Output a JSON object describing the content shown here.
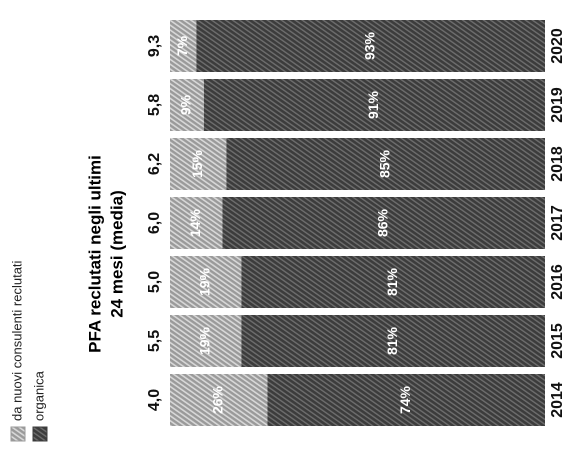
{
  "chart_data": {
    "type": "stacked-bar",
    "title": "PFA reclutati negli ultimi",
    "subtitle": "24 mesi (media)",
    "categories": [
      "2014",
      "2015",
      "2016",
      "2017",
      "2018",
      "2019",
      "2020"
    ],
    "series": [
      {
        "name": "organica",
        "color": "#3c3c3c",
        "values": [
          74,
          81,
          81,
          86,
          85,
          91,
          93
        ],
        "value_labels": [
          "74%",
          "81%",
          "81%",
          "86%",
          "85%",
          "91%",
          "93%"
        ]
      },
      {
        "name": "da nuovi consulenti reclutati",
        "color": "#9a9a9a",
        "values": [
          26,
          19,
          19,
          14,
          15,
          9,
          7
        ],
        "value_labels": [
          "26%",
          "19%",
          "19%",
          "14%",
          "15%",
          "9%",
          "7%"
        ]
      }
    ],
    "totals": {
      "values": [
        4.0,
        5.5,
        5.0,
        6.0,
        6.2,
        5.8,
        9.3
      ],
      "value_labels": [
        "4,0",
        "5,5",
        "5,0",
        "6,0",
        "6,2",
        "5,8",
        "9,3"
      ]
    },
    "ylim": [
      0,
      100
    ]
  }
}
